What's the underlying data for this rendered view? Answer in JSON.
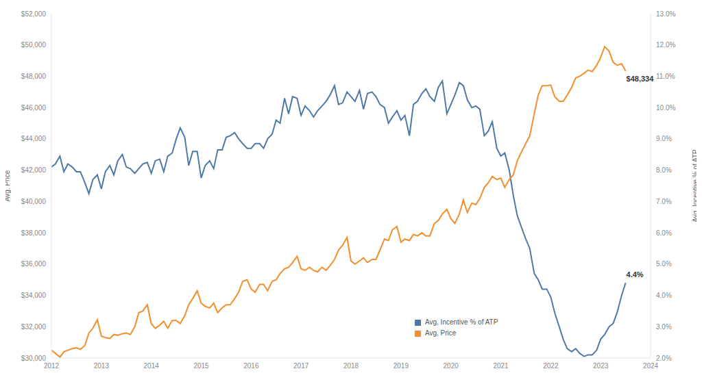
{
  "chart_data": {
    "type": "line",
    "y_label": "Avg. Price",
    "y2_label": "Avg. Incentive % of ATP",
    "x": [
      2012,
      2012.08,
      2012.17,
      2012.25,
      2012.33,
      2012.42,
      2012.5,
      2012.58,
      2012.67,
      2012.75,
      2012.83,
      2012.92,
      2013,
      2013.08,
      2013.17,
      2013.25,
      2013.33,
      2013.42,
      2013.5,
      2013.58,
      2013.67,
      2013.75,
      2013.83,
      2013.92,
      2014,
      2014.08,
      2014.17,
      2014.25,
      2014.33,
      2014.42,
      2014.5,
      2014.58,
      2014.67,
      2014.75,
      2014.83,
      2014.92,
      2015,
      2015.08,
      2015.17,
      2015.25,
      2015.33,
      2015.42,
      2015.5,
      2015.58,
      2015.67,
      2015.75,
      2015.83,
      2015.92,
      2016,
      2016.08,
      2016.17,
      2016.25,
      2016.33,
      2016.42,
      2016.5,
      2016.58,
      2016.67,
      2016.75,
      2016.83,
      2016.92,
      2017,
      2017.08,
      2017.17,
      2017.25,
      2017.33,
      2017.42,
      2017.5,
      2017.58,
      2017.67,
      2017.75,
      2017.83,
      2017.92,
      2018,
      2018.08,
      2018.17,
      2018.25,
      2018.33,
      2018.42,
      2018.5,
      2018.58,
      2018.67,
      2018.75,
      2018.83,
      2018.92,
      2019,
      2019.08,
      2019.17,
      2019.25,
      2019.33,
      2019.42,
      2019.5,
      2019.58,
      2019.67,
      2019.75,
      2019.83,
      2019.92,
      2020,
      2020.08,
      2020.17,
      2020.25,
      2020.33,
      2020.42,
      2020.5,
      2020.58,
      2020.67,
      2020.75,
      2020.83,
      2020.92,
      2021,
      2021.08,
      2021.17,
      2021.25,
      2021.33,
      2021.42,
      2021.5,
      2021.58,
      2021.67,
      2021.75,
      2021.83,
      2021.92,
      2022,
      2022.08,
      2022.17,
      2022.25,
      2022.33,
      2022.42,
      2022.5,
      2022.58,
      2022.67,
      2022.75,
      2022.83,
      2022.92,
      2023,
      2023.08,
      2023.17,
      2023.25,
      2023.33,
      2023.42,
      2023.5
    ],
    "series": [
      {
        "name": "Avg. Incentive % of ATP",
        "color": "#4e79a7",
        "axis": "y2",
        "end_label": "4.4%",
        "values": [
          8.1,
          8.2,
          8.45,
          7.95,
          8.2,
          8.1,
          7.95,
          7.95,
          7.6,
          7.25,
          7.7,
          7.85,
          7.4,
          7.95,
          8.15,
          7.85,
          8.3,
          8.5,
          8.1,
          8.05,
          7.9,
          8.05,
          8.2,
          8.25,
          7.9,
          8.3,
          8.35,
          7.95,
          8.45,
          8.55,
          9.0,
          9.35,
          9.05,
          8.15,
          8.6,
          8.6,
          7.75,
          8.15,
          8.3,
          8.05,
          8.65,
          8.65,
          9.05,
          9.1,
          9.2,
          9.0,
          8.85,
          8.7,
          8.7,
          8.85,
          8.85,
          8.7,
          9.0,
          9.15,
          9.6,
          9.5,
          10.3,
          9.8,
          10.35,
          10.3,
          9.75,
          10.05,
          9.9,
          9.7,
          9.9,
          10.05,
          10.2,
          10.4,
          10.7,
          10.1,
          10.15,
          10.5,
          10.35,
          10.2,
          10.55,
          9.95,
          10.45,
          10.5,
          10.35,
          10.1,
          10.0,
          9.5,
          9.7,
          9.9,
          9.6,
          9.75,
          9.1,
          10.1,
          10.2,
          10.45,
          10.6,
          10.35,
          10.2,
          10.65,
          10.85,
          9.8,
          10.1,
          10.4,
          10.8,
          10.7,
          10.25,
          10.0,
          10.05,
          9.95,
          9.1,
          9.25,
          9.55,
          8.7,
          8.45,
          8.55,
          8.0,
          7.2,
          6.55,
          6.15,
          5.8,
          5.5,
          4.7,
          4.5,
          4.2,
          4.2,
          3.95,
          3.45,
          3.0,
          2.6,
          2.3,
          2.2,
          2.3,
          2.15,
          2.05,
          2.1,
          2.1,
          2.25,
          2.6,
          2.75,
          3.0,
          3.1,
          3.45,
          4.0,
          4.4
        ]
      },
      {
        "name": "Avg. Price",
        "color": "#f28e2b",
        "axis": "y",
        "end_label": "$48,334",
        "values": [
          30500,
          30300,
          30050,
          30400,
          30500,
          30600,
          30650,
          30550,
          30800,
          31600,
          31900,
          32450,
          31400,
          31300,
          31250,
          31500,
          31450,
          31550,
          31600,
          31500,
          32000,
          32900,
          33000,
          33400,
          32200,
          31900,
          32100,
          32350,
          31900,
          32400,
          32400,
          32200,
          32700,
          33400,
          33800,
          34300,
          33500,
          33300,
          33200,
          33500,
          32900,
          33200,
          33400,
          33400,
          33800,
          34200,
          34900,
          35000,
          34400,
          34200,
          34700,
          34700,
          34300,
          34900,
          35000,
          35400,
          35700,
          35800,
          36100,
          36500,
          35700,
          35600,
          35800,
          35600,
          35500,
          35800,
          35600,
          35900,
          36300,
          36900,
          37200,
          37700,
          36200,
          36000,
          36200,
          36400,
          36100,
          36300,
          36300,
          36900,
          37600,
          37500,
          38200,
          38400,
          37400,
          37600,
          37500,
          37900,
          37800,
          38000,
          37800,
          37800,
          38600,
          38800,
          39200,
          39500,
          38900,
          38600,
          39200,
          40100,
          39300,
          39900,
          39800,
          40200,
          40900,
          41200,
          41600,
          41400,
          41500,
          40900,
          41400,
          41700,
          42600,
          43200,
          43700,
          44200,
          45600,
          46800,
          47400,
          47400,
          47450,
          46700,
          46400,
          46400,
          46800,
          47300,
          47900,
          48000,
          48200,
          48400,
          48300,
          48700,
          49200,
          49900,
          49600,
          48900,
          48700,
          48800,
          48334
        ]
      }
    ],
    "xlim": [
      2012,
      2024
    ],
    "xticks": [
      2012,
      2013,
      2014,
      2015,
      2016,
      2017,
      2018,
      2019,
      2020,
      2021,
      2022,
      2023,
      2024
    ],
    "ylim": [
      30000,
      52000
    ],
    "yticks": [
      {
        "value": 30000,
        "label": "$30,000"
      },
      {
        "value": 32000,
        "label": "$32,000"
      },
      {
        "value": 34000,
        "label": "$34,000"
      },
      {
        "value": 36000,
        "label": "$36,000"
      },
      {
        "value": 38000,
        "label": "$38,000"
      },
      {
        "value": 40000,
        "label": "$40,000"
      },
      {
        "value": 42000,
        "label": "$42,000"
      },
      {
        "value": 44000,
        "label": "$44,000"
      },
      {
        "value": 46000,
        "label": "$46,000"
      },
      {
        "value": 48000,
        "label": "$48,000"
      },
      {
        "value": 50000,
        "label": "$50,000"
      },
      {
        "value": 52000,
        "label": "$52,000"
      }
    ],
    "y2lim": [
      2,
      13
    ],
    "y2ticks": [
      {
        "value": 2,
        "label": "2.0%"
      },
      {
        "value": 3,
        "label": "3.0%"
      },
      {
        "value": 4,
        "label": "4.0%"
      },
      {
        "value": 5,
        "label": "5.0%"
      },
      {
        "value": 6,
        "label": "6.0%"
      },
      {
        "value": 7,
        "label": "7.0%"
      },
      {
        "value": 8,
        "label": "8.0%"
      },
      {
        "value": 9,
        "label": "9.0%"
      },
      {
        "value": 10,
        "label": "10.0%"
      },
      {
        "value": 11,
        "label": "11.0%"
      },
      {
        "value": 12,
        "label": "12.0%"
      },
      {
        "value": 13,
        "label": "13.0%"
      }
    ],
    "grid": false,
    "legend": "lower center"
  }
}
